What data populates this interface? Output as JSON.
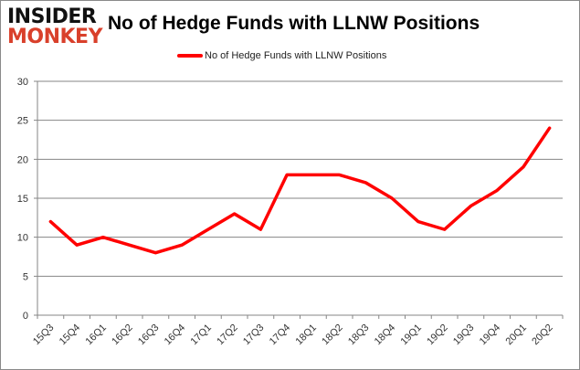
{
  "logo": {
    "line1": "INSIDER",
    "line2": "MONKEY"
  },
  "chart_data": {
    "type": "line",
    "title": "No of Hedge Funds with LLNW Positions",
    "xlabel": "",
    "ylabel": "",
    "categories": [
      "15Q3",
      "15Q4",
      "16Q1",
      "16Q2",
      "16Q3",
      "16Q4",
      "17Q1",
      "17Q2",
      "17Q3",
      "17Q4",
      "18Q1",
      "18Q2",
      "18Q3",
      "18Q4",
      "19Q1",
      "19Q2",
      "19Q3",
      "19Q4",
      "20Q1",
      "20Q2"
    ],
    "series": [
      {
        "name": "No of Hedge Funds with LLNW Positions",
        "color": "#ff0000",
        "values": [
          12,
          9,
          10,
          9,
          8,
          9,
          11,
          13,
          11,
          18,
          18,
          18,
          17,
          15,
          12,
          11,
          14,
          16,
          19,
          24
        ]
      }
    ],
    "ylim": [
      0,
      30
    ],
    "yticks": [
      0,
      5,
      10,
      15,
      20,
      25,
      30
    ],
    "grid": true,
    "legend": "top-center"
  }
}
